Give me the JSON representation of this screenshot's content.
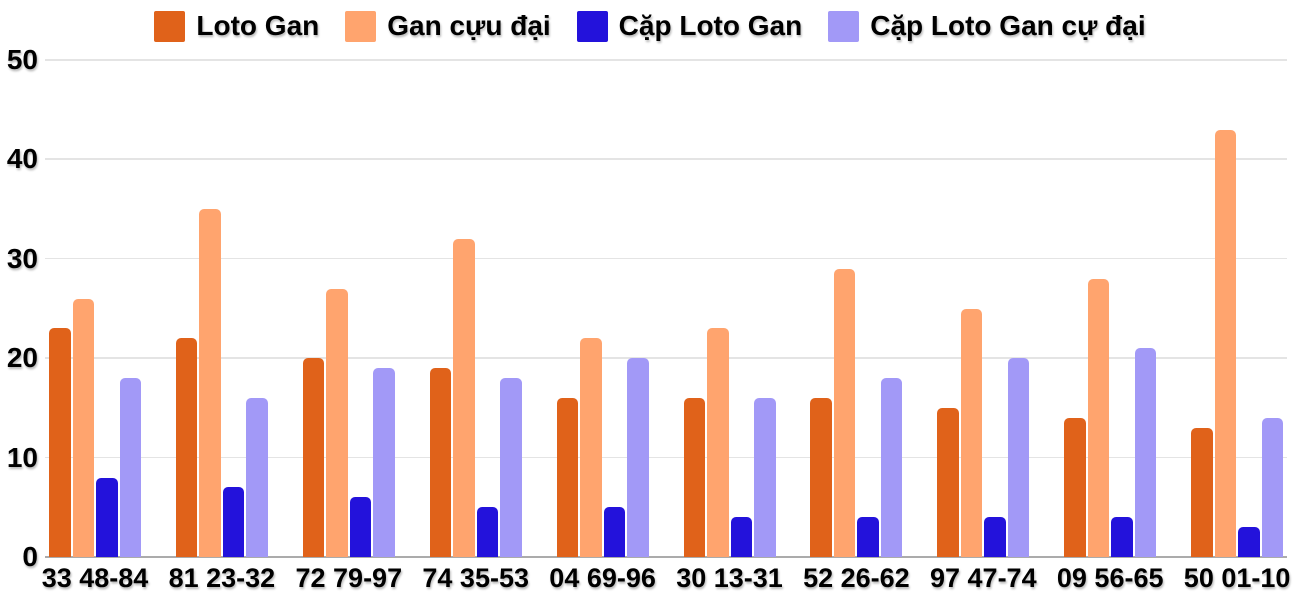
{
  "chart_data": {
    "type": "bar",
    "title": "",
    "xlabel": "",
    "ylabel": "",
    "categories": [
      "33 48-84",
      "81 23-32",
      "72 79-97",
      "74 35-53",
      "04 69-96",
      "30 13-31",
      "52 26-62",
      "97 47-74",
      "09 56-65",
      "50 01-10"
    ],
    "series": [
      {
        "name": "Loto Gan",
        "color": "#E0621A",
        "values": [
          23,
          22,
          20,
          19,
          16,
          16,
          16,
          15,
          14,
          13
        ]
      },
      {
        "name": "Gan cựu đại",
        "color": "#FFA46E",
        "values": [
          26,
          35,
          27,
          32,
          22,
          23,
          29,
          25,
          28,
          43
        ]
      },
      {
        "name": "Cặp Loto Gan",
        "color": "#2312DB",
        "values": [
          8,
          7,
          6,
          5,
          5,
          4,
          4,
          4,
          4,
          3
        ]
      },
      {
        "name": "Cặp Loto Gan cự đại",
        "color": "#A299F7",
        "values": [
          18,
          16,
          19,
          18,
          20,
          16,
          18,
          20,
          21,
          14
        ]
      }
    ],
    "ylim": [
      0,
      50
    ],
    "yticks": [
      0,
      10,
      20,
      30,
      40,
      50
    ],
    "grid": true,
    "legend_position": "top"
  },
  "colors": {
    "gridline": "#E4E4E4",
    "baseline": "#ABABAB",
    "text": "#000000",
    "background": "#FFFFFF"
  }
}
